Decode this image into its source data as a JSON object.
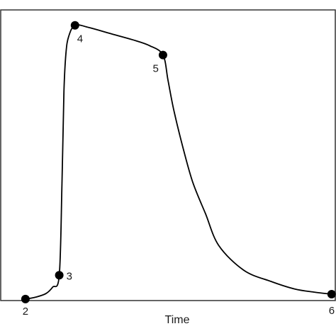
{
  "chart_data": {
    "type": "line",
    "xlabel": "Time",
    "ylabel": "",
    "title": "",
    "grid": false,
    "xlim": [
      0,
      100
    ],
    "ylim": [
      0,
      100
    ],
    "points": [
      {
        "label": "2",
        "x": 7.4,
        "y": 0.5
      },
      {
        "label": "3",
        "x": 17.5,
        "y": 8.7
      },
      {
        "label": "4",
        "x": 22.2,
        "y": 94.7
      },
      {
        "label": "5",
        "x": 48.5,
        "y": 84.5
      },
      {
        "label": "6",
        "x": 98.9,
        "y": 2.2
      }
    ],
    "curve": [
      [
        7.4,
        0.5
      ],
      [
        10.5,
        1.2
      ],
      [
        13.5,
        2.4
      ],
      [
        15.5,
        4.6
      ],
      [
        17.5,
        8.7
      ],
      [
        18.3,
        40
      ],
      [
        18.9,
        72
      ],
      [
        19.5,
        85
      ],
      [
        20.3,
        90.8
      ],
      [
        22.2,
        94.7
      ],
      [
        26.2,
        94.0
      ],
      [
        33,
        91.8
      ],
      [
        39.5,
        89.7
      ],
      [
        44.5,
        87.7
      ],
      [
        48.5,
        84.5
      ],
      [
        50,
        75.8
      ],
      [
        51.7,
        65.7
      ],
      [
        54.4,
        52.9
      ],
      [
        57.4,
        40.7
      ],
      [
        61.2,
        29.9
      ],
      [
        65.2,
        18.9
      ],
      [
        72.7,
        10.4
      ],
      [
        80.7,
        6.6
      ],
      [
        87.8,
        4.0
      ],
      [
        93.7,
        2.9
      ],
      [
        98.9,
        2.2
      ]
    ],
    "line_color": "#000000",
    "marker_color": "#000000"
  }
}
